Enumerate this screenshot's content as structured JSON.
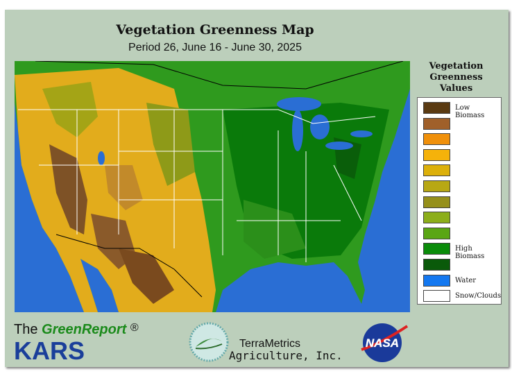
{
  "header": {
    "title": "Vegetation Greenness Map",
    "subtitle": "Period 26, June 16 - June 30, 2025"
  },
  "legend": {
    "title": [
      "Vegetation",
      "Greenness",
      "Values"
    ],
    "items": [
      {
        "color": "#5a3a12",
        "label": "Low Biomass"
      },
      {
        "color": "#a0602a"
      },
      {
        "color": "#f0900a"
      },
      {
        "color": "#f5b20a"
      },
      {
        "color": "#dcb00a"
      },
      {
        "color": "#b8a814"
      },
      {
        "color": "#96901a"
      },
      {
        "color": "#8cae1a"
      },
      {
        "color": "#5aa614"
      },
      {
        "color": "#0a8c0a",
        "label": "High Biomass"
      },
      {
        "color": "#0a5a0a"
      },
      {
        "color": "#1478f0",
        "label": "Water"
      },
      {
        "color": "#ffffff",
        "label": "Snow/Clouds"
      }
    ]
  },
  "footer": {
    "brand_prefix": "The",
    "brand_name": "GreenReport",
    "registered": "®",
    "brand_org": "KARS",
    "partner": [
      "TerraMetrics",
      "Agriculture, Inc."
    ],
    "agency": "NASA"
  }
}
